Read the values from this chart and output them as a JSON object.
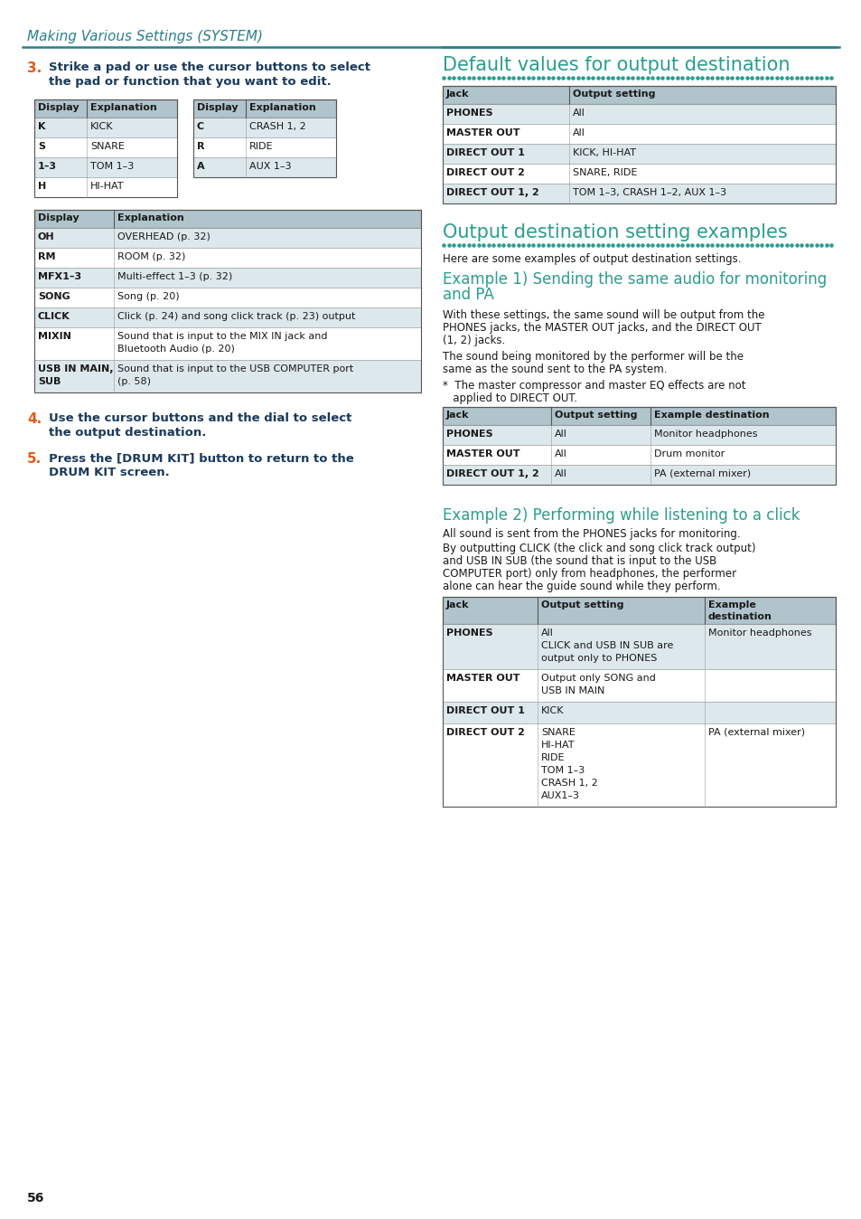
{
  "page_header": "Making Various Settings (SYSTEM)",
  "header_line_color": "#2a7f8a",
  "step3_num": "3.",
  "step3_text_line1": "Strike a pad or use the cursor buttons to select",
  "step3_text_line2": "the pad or function that you want to edit.",
  "step3_color": "#e05c1a",
  "step3_text_color": "#1a3a5c",
  "table1a_headers": [
    "Display",
    "Explanation"
  ],
  "table1a_rows": [
    [
      "K",
      "KICK"
    ],
    [
      "S",
      "SNARE"
    ],
    [
      "1–3",
      "TOM 1–3"
    ],
    [
      "H",
      "HI-HAT"
    ]
  ],
  "table1b_headers": [
    "Display",
    "Explanation"
  ],
  "table1b_rows": [
    [
      "C",
      "CRASH 1, 2"
    ],
    [
      "R",
      "RIDE"
    ],
    [
      "A",
      "AUX 1–3"
    ]
  ],
  "table2_headers": [
    "Display",
    "Explanation"
  ],
  "table2_rows": [
    [
      "OH",
      "OVERHEAD (p. 32)"
    ],
    [
      "RM",
      "ROOM (p. 32)"
    ],
    [
      "MFX1–3",
      "Multi-effect 1–3 (p. 32)"
    ],
    [
      "SONG",
      "Song (p. 20)"
    ],
    [
      "CLICK",
      "Click (p. 24) and song click track (p. 23) output"
    ],
    [
      "MIXIN",
      "Sound that is input to the MIX IN jack and\nBluetooth Audio (p. 20)"
    ],
    [
      "USB IN MAIN,\nSUB",
      "Sound that is input to the USB COMPUTER port\n(p. 58)"
    ]
  ],
  "step4_num": "4.",
  "step4_text_line1": "Use the cursor buttons and the dial to select",
  "step4_text_line2": "the output destination.",
  "step5_num": "5.",
  "step5_text_line1": "Press the [DRUM KIT] button to return to the",
  "step5_text_line2": "DRUM KIT screen.",
  "right_title1": "Default values for output destination",
  "right_title1_color": "#2a9d8f",
  "right_table1_headers": [
    "Jack",
    "Output setting"
  ],
  "right_table1_rows": [
    [
      "PHONES",
      "All"
    ],
    [
      "MASTER OUT",
      "All"
    ],
    [
      "DIRECT OUT 1",
      "KICK, HI-HAT"
    ],
    [
      "DIRECT OUT 2",
      "SNARE, RIDE"
    ],
    [
      "DIRECT OUT 1, 2",
      "TOM 1–3, CRASH 1–2, AUX 1–3"
    ]
  ],
  "right_title2": "Output destination setting examples",
  "right_title2_color": "#2a9d8f",
  "right_intro": "Here are some examples of output destination settings.",
  "example1_title_line1": "Example 1) Sending the same audio for monitoring",
  "example1_title_line2": "and PA",
  "example1_title_color": "#2a9d8f",
  "example1_text1_line1": "With these settings, the same sound will be output from the",
  "example1_text1_line2": "PHONES jacks, the MASTER OUT jacks, and the DIRECT OUT",
  "example1_text1_line3": "(1, 2) jacks.",
  "example1_text2_line1": "The sound being monitored by the performer will be the",
  "example1_text2_line2": "same as the sound sent to the PA system.",
  "example1_note_line1": "*  The master compressor and master EQ effects are not",
  "example1_note_line2": "   applied to DIRECT OUT.",
  "right_table2_headers": [
    "Jack",
    "Output setting",
    "Example destination"
  ],
  "right_table2_rows": [
    [
      "PHONES",
      "All",
      "Monitor headphones"
    ],
    [
      "MASTER OUT",
      "All",
      "Drum monitor"
    ],
    [
      "DIRECT OUT 1, 2",
      "All",
      "PA (external mixer)"
    ]
  ],
  "example2_title": "Example 2) Performing while listening to a click",
  "example2_title_color": "#2a9d8f",
  "example2_text1": "All sound is sent from the PHONES jacks for monitoring.",
  "example2_text2_line1": "By outputting CLICK (the click and song click track output)",
  "example2_text2_line2": "and USB IN SUB (the sound that is input to the USB",
  "example2_text2_line3": "COMPUTER port) only from headphones, the performer",
  "example2_text2_line4": "alone can hear the guide sound while they perform.",
  "right_table3_headers": [
    "Jack",
    "Output setting",
    "Example\ndestination"
  ],
  "right_table3_rows": [
    [
      "PHONES",
      "All\nCLICK and USB IN SUB are\noutput only to PHONES",
      "Monitor headphones"
    ],
    [
      "MASTER OUT",
      "Output only SONG and\nUSB IN MAIN",
      ""
    ],
    [
      "DIRECT OUT 1",
      "KICK",
      ""
    ],
    [
      "DIRECT OUT 2",
      "SNARE\nHI-HAT\nRIDE\nTOM 1–3\nCRASH 1, 2\nAUX1–3",
      "PA (external mixer)"
    ]
  ],
  "page_number": "56",
  "table_header_bg": "#b0c4cc",
  "table_row_bg_alt": "#dde8ed",
  "table_border_dark": "#555555",
  "table_border_light": "#999999"
}
